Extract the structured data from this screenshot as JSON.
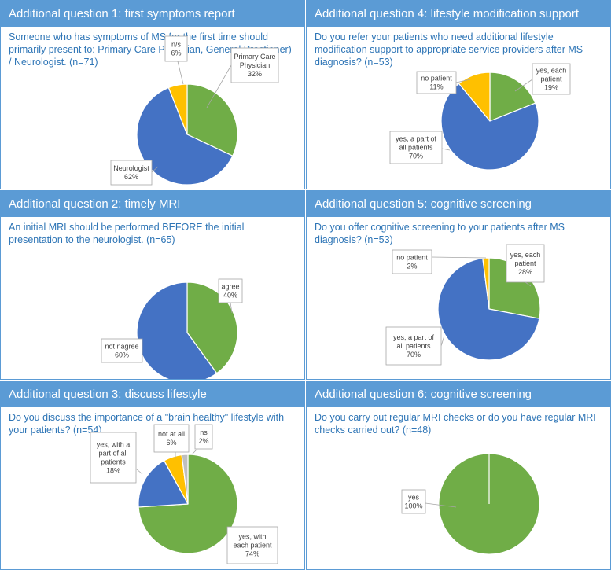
{
  "colors": {
    "green": "#70ad47",
    "blue": "#4472c4",
    "yellow": "#ffc000",
    "gray": "#bfbfbf",
    "header": "#5b9bd5",
    "question": "#2e75b6"
  },
  "panels": [
    {
      "title": "Additional question 1: first symptoms report",
      "question": "Someone who has symptoms of MS for the first time should primarily present to: Primary Care Physician, General Practioner) / Neurologist. (n=71)"
    },
    {
      "title": "Additional question 4: lifestyle modification support",
      "question": "Do you refer your patients who need additional lifestyle modification support to appropriate service providers after MS diagnosis? (n=53)"
    },
    {
      "title": "Additional question 2: timely MRI",
      "question": "An initial MRI should be performed BEFORE the initial presentation to the neurologist. (n=65)"
    },
    {
      "title": "Additional question 5: cognitive screening",
      "question": "Do you offer cognitive screening to your patients after MS diagnosis? (n=53)"
    },
    {
      "title": "Additional question 3: discuss lifestyle",
      "question": "Do you discuss the importance of a \"brain healthy\" lifestyle with your patients? (n=54)"
    },
    {
      "title": "Additional question 6: cognitive screening",
      "question": "Do you carry out regular MRI checks or do you have regular MRI checks carried out? (n=48)"
    }
  ],
  "chart_data": [
    {
      "type": "pie",
      "title": "Additional question 1: first symptoms report",
      "slices": [
        {
          "label": "Primary Care Physician",
          "value": 32,
          "pct_label": "32%",
          "color": "#70ad47"
        },
        {
          "label": "Neurologist",
          "value": 62,
          "pct_label": "62%",
          "color": "#4472c4"
        },
        {
          "label": "n/s",
          "value": 6,
          "pct_label": "6%",
          "color": "#ffc000"
        }
      ]
    },
    {
      "type": "pie",
      "title": "Additional question 4: lifestyle modification support",
      "slices": [
        {
          "label": "yes, each patient",
          "value": 19,
          "pct_label": "19%",
          "color": "#70ad47"
        },
        {
          "label": "yes, a part of all patients",
          "value": 70,
          "pct_label": "70%",
          "color": "#4472c4"
        },
        {
          "label": "no patient",
          "value": 11,
          "pct_label": "11%",
          "color": "#ffc000"
        }
      ]
    },
    {
      "type": "pie",
      "title": "Additional question 2: timely MRI",
      "slices": [
        {
          "label": "agree",
          "value": 40,
          "pct_label": "40%",
          "color": "#70ad47"
        },
        {
          "label": "not nagree",
          "value": 60,
          "pct_label": "60%",
          "color": "#4472c4"
        }
      ]
    },
    {
      "type": "pie",
      "title": "Additional question 5: cognitive screening",
      "slices": [
        {
          "label": "yes, each patient",
          "value": 28,
          "pct_label": "28%",
          "color": "#70ad47"
        },
        {
          "label": "yes, a part of all patients",
          "value": 70,
          "pct_label": "70%",
          "color": "#4472c4"
        },
        {
          "label": "no patient",
          "value": 2,
          "pct_label": "2%",
          "color": "#ffc000"
        }
      ]
    },
    {
      "type": "pie",
      "title": "Additional question 3: discuss lifestyle",
      "slices": [
        {
          "label": "yes, with each patient",
          "value": 74,
          "pct_label": "74%",
          "color": "#70ad47"
        },
        {
          "label": "yes, with a part of all patients",
          "value": 18,
          "pct_label": "18%",
          "color": "#4472c4"
        },
        {
          "label": "not at all",
          "value": 6,
          "pct_label": "6%",
          "color": "#ffc000"
        },
        {
          "label": "ns",
          "value": 2,
          "pct_label": "2%",
          "color": "#bfbfbf"
        }
      ]
    },
    {
      "type": "pie",
      "title": "Additional question 6: cognitive screening",
      "slices": [
        {
          "label": "yes",
          "value": 100,
          "pct_label": "100%",
          "color": "#70ad47"
        }
      ]
    }
  ]
}
